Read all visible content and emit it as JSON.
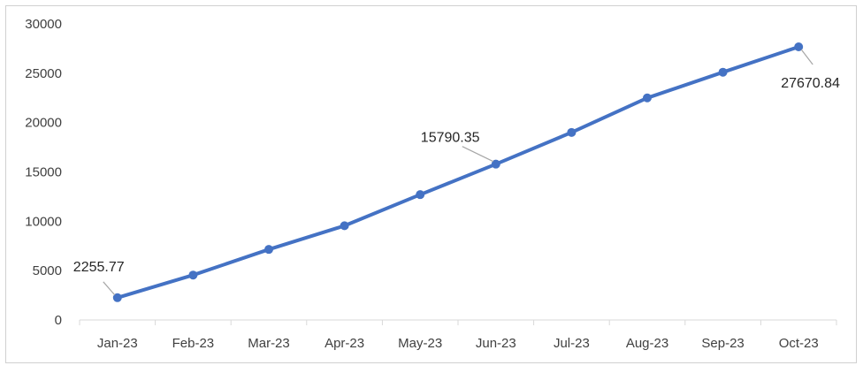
{
  "chart_data": {
    "type": "line",
    "title": "",
    "xlabel": "",
    "ylabel": "",
    "categories": [
      "Jan-23",
      "Feb-23",
      "Mar-23",
      "Apr-23",
      "May-23",
      "Jun-23",
      "Jul-23",
      "Aug-23",
      "Sep-23",
      "Oct-23"
    ],
    "series": [
      {
        "values": [
          2255.77,
          4550,
          7150,
          9550,
          12700,
          15790.35,
          19000,
          22500,
          25100,
          27670.84
        ],
        "color": "#4472c4"
      }
    ],
    "ylim": [
      0,
      30000
    ],
    "yticks": [
      "0",
      "5000",
      "10000",
      "15000",
      "20000",
      "25000",
      "30000"
    ],
    "data_labels": [
      {
        "index": 0,
        "text": "2255.77"
      },
      {
        "index": 5,
        "text": "15790.35"
      },
      {
        "index": 9,
        "text": "27670.84"
      }
    ],
    "grid": false,
    "legend": "none",
    "axis_color": "#d9d9d9",
    "leader_color": "#a6a6a6"
  }
}
